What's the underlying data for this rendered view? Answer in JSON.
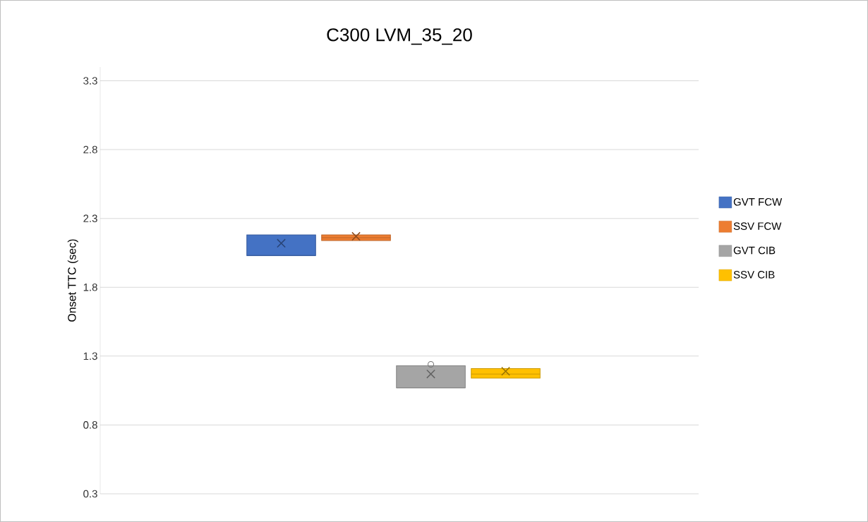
{
  "chart_data": {
    "type": "box",
    "title": "C300 LVM_35_20",
    "ylabel": "Onset TTC (sec)",
    "categories": [
      null
    ],
    "series": [
      {
        "name": "GVT FCW",
        "color": "#4472c4",
        "boxes": [
          {
            "low": 2.03,
            "q1": 2.03,
            "median": 2.03,
            "q3": 2.18,
            "high": 2.18,
            "mean": 2.12
          }
        ]
      },
      {
        "name": "SSV FCW",
        "color": "#ed7d31",
        "boxes": [
          {
            "low": 2.14,
            "q1": 2.14,
            "median": 2.16,
            "q3": 2.18,
            "high": 2.18,
            "mean": 2.17
          }
        ]
      },
      {
        "name": "GVT CIB",
        "color": "#a5a5a5",
        "boxes": [
          {
            "low": 1.07,
            "q1": 1.07,
            "median": 1.07,
            "q3": 1.23,
            "high": 1.23,
            "mean": 1.17,
            "outliers": [
              1.24
            ]
          }
        ]
      },
      {
        "name": "SSV CIB",
        "color": "#ffc000",
        "boxes": [
          {
            "low": 1.14,
            "q1": 1.14,
            "median": 1.17,
            "q3": 1.21,
            "high": 1.21,
            "mean": 1.19
          }
        ]
      }
    ],
    "ylim": [
      0.3,
      3.4
    ],
    "yticks": [
      0.3,
      0.8,
      1.3,
      1.8,
      2.3,
      2.8,
      3.3
    ],
    "grid": "y",
    "legend": "right"
  }
}
